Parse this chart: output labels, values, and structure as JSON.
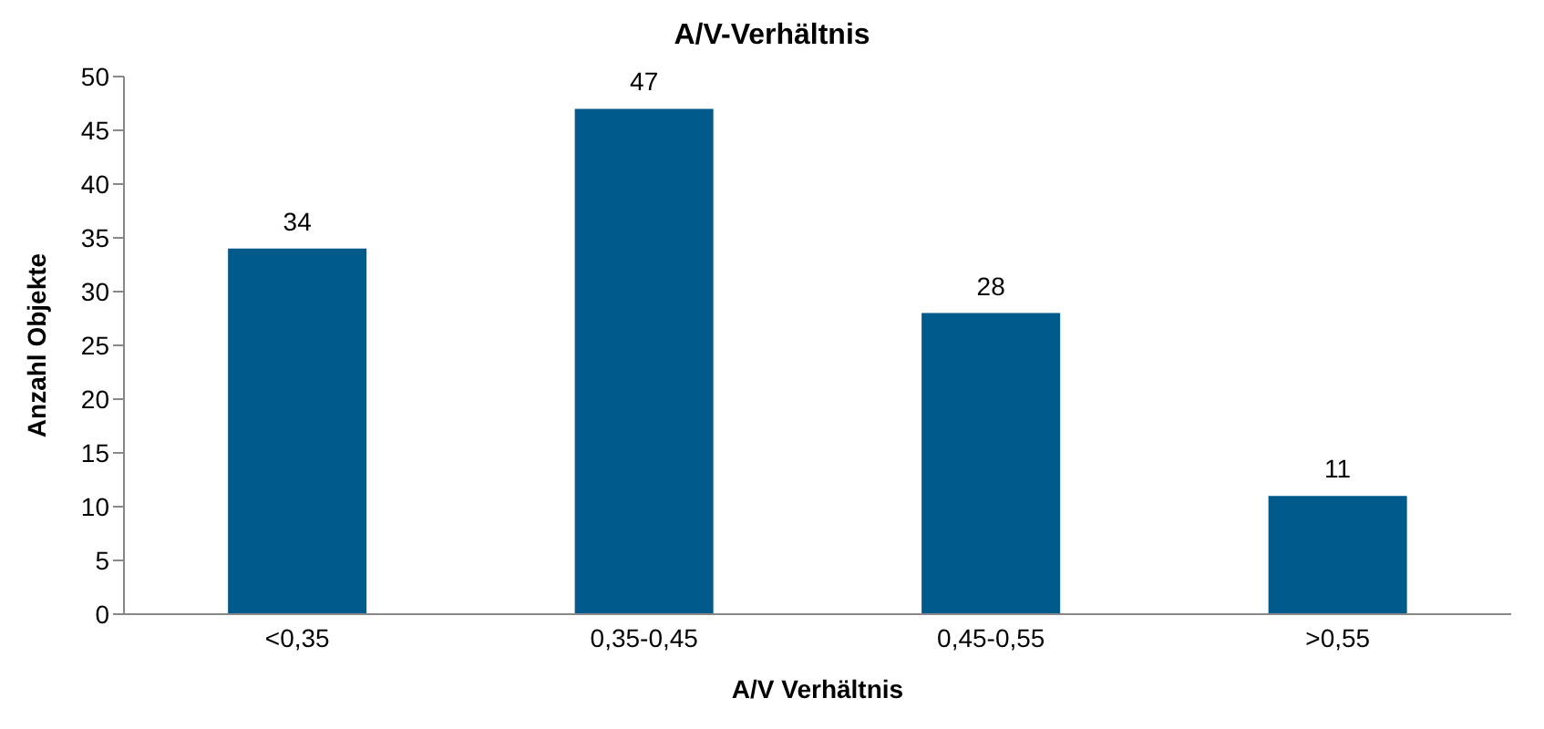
{
  "chart_data": {
    "type": "bar",
    "title": "A/V-Verhältnis",
    "xlabel": "A/V Verhältnis",
    "ylabel": "Anzahl Objekte",
    "categories": [
      "<0,35",
      "0,35-0,45",
      "0,45-0,55",
      ">0,55"
    ],
    "values": [
      34,
      47,
      28,
      11
    ],
    "color": "#005a8c",
    "ylim": [
      0,
      50
    ],
    "yticks": [
      0,
      5,
      10,
      15,
      20,
      25,
      30,
      35,
      40,
      45,
      50
    ],
    "grid": false,
    "data_labels": true
  }
}
